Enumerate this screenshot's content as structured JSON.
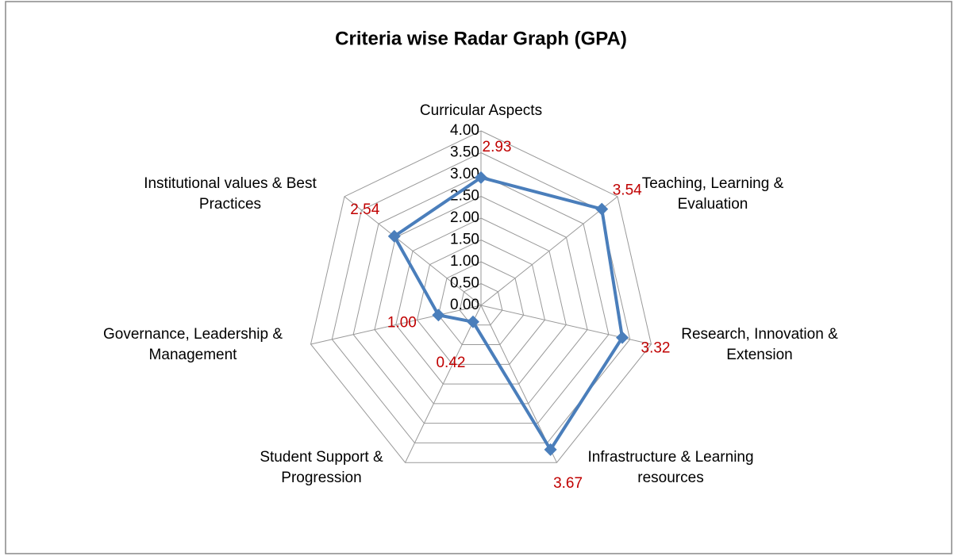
{
  "chart_data": {
    "type": "radar",
    "title": "Criteria wise Radar Graph (GPA)",
    "categories": [
      "Curricular Aspects",
      "Teaching, Learning & Evaluation",
      "Research, Innovation & Extension",
      "Infrastructure & Learning resources",
      "Student Support & Progression",
      "Governance, Leadership & Management",
      "Institutional values & Best Practices"
    ],
    "series": [
      {
        "name": "GPA",
        "color": "#4a7ebb",
        "values": [
          2.93,
          3.54,
          3.32,
          3.67,
          0.42,
          1,
          2.54
        ],
        "value_labels": [
          "2.93",
          "3.54",
          "3.32",
          "3.67",
          "0.42",
          "1.00",
          "2.54"
        ]
      }
    ],
    "ylim": [
      0,
      4
    ],
    "yticks": [
      {
        "value": 0,
        "label": "0.00"
      },
      {
        "value": 0.5,
        "label": "0.50"
      },
      {
        "value": 1,
        "label": "1.00"
      },
      {
        "value": 1.5,
        "label": "1.50"
      },
      {
        "value": 2,
        "label": "2.00"
      },
      {
        "value": 2.5,
        "label": "2.50"
      },
      {
        "value": 3,
        "label": "3.00"
      },
      {
        "value": 3.5,
        "label": "3.50"
      },
      {
        "value": 4,
        "label": "4.00"
      }
    ],
    "grid": true,
    "value_label_color": "#c00000"
  }
}
